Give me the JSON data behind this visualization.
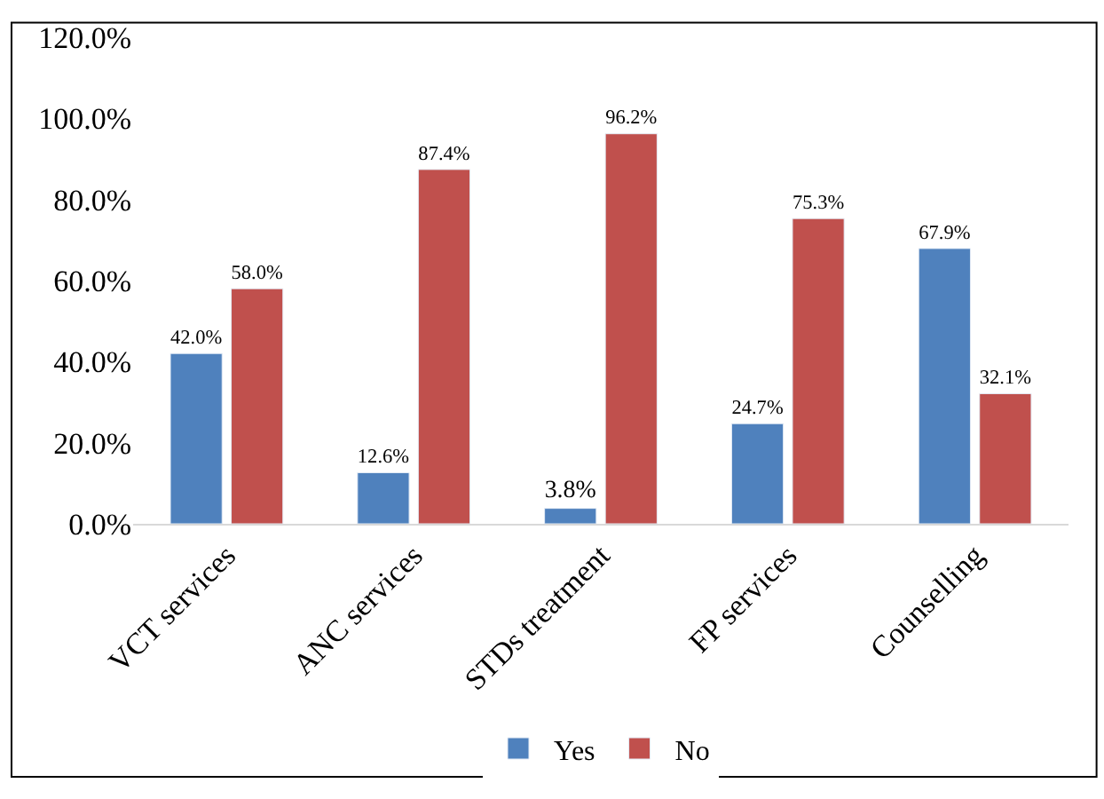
{
  "chart_data": {
    "type": "bar",
    "categories": [
      "VCT services",
      "ANC services",
      "STDs treatment",
      "FP services",
      "Counselling"
    ],
    "series": [
      {
        "name": "Yes",
        "color": "#4f81bd",
        "values": [
          42.0,
          12.6,
          3.8,
          24.7,
          67.9
        ],
        "value_labels": [
          "42.0%",
          "12.6%",
          "3.8%",
          "24.7%",
          "67.9%"
        ]
      },
      {
        "name": "No",
        "color": "#c0504d",
        "values": [
          58.0,
          87.4,
          96.2,
          75.3,
          32.1
        ],
        "value_labels": [
          "58.0%",
          "87.4%",
          "96.2%",
          "75.3%",
          "32.1%"
        ]
      }
    ],
    "ylim": [
      0,
      120
    ],
    "yticks": [
      {
        "value": 0,
        "label": "0.0%"
      },
      {
        "value": 20,
        "label": "20.0%"
      },
      {
        "value": 40,
        "label": "40.0%"
      },
      {
        "value": 60,
        "label": "60.0%"
      },
      {
        "value": 80,
        "label": "80.0%"
      },
      {
        "value": 100,
        "label": "100.0%"
      },
      {
        "value": 120,
        "label": "120.0%"
      }
    ],
    "legend": "bottom"
  }
}
